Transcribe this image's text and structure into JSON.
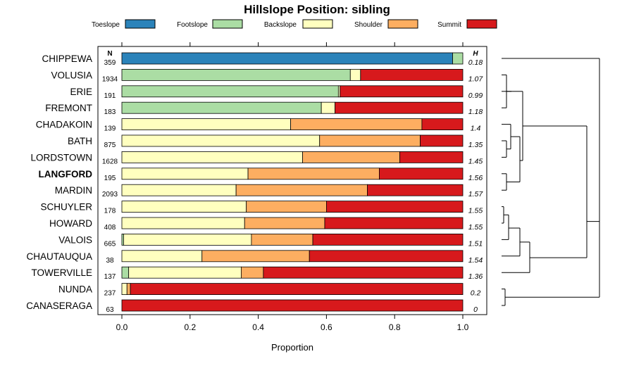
{
  "chart_data": {
    "type": "bar",
    "stacked": true,
    "orientation": "horizontal",
    "title": "Hillslope Position: sibling",
    "xlabel": "Proportion",
    "xlim": [
      0,
      1
    ],
    "x_ticks": [
      "0.0",
      "0.2",
      "0.4",
      "0.6",
      "0.8",
      "1.0"
    ],
    "n_header": "N",
    "h_header": "H",
    "legend_position": "top",
    "series": [
      {
        "name": "Toeslope",
        "color": "#2b83ba"
      },
      {
        "name": "Footslope",
        "color": "#abdda4"
      },
      {
        "name": "Backslope",
        "color": "#ffffbf"
      },
      {
        "name": "Shoulder",
        "color": "#fdae61"
      },
      {
        "name": "Summit",
        "color": "#d7191c"
      }
    ],
    "rows": [
      {
        "label": "CHIPPEWA",
        "n": "359",
        "h": "0.18",
        "bold": false,
        "values": [
          0.97,
          0.03,
          0,
          0,
          0
        ]
      },
      {
        "label": "VOLUSIA",
        "n": "1934",
        "h": "1.07",
        "bold": false,
        "values": [
          0,
          0.67,
          0.03,
          0,
          0.3
        ]
      },
      {
        "label": "ERIE",
        "n": "191",
        "h": "0.99",
        "bold": false,
        "values": [
          0,
          0.635,
          0.005,
          0,
          0.36
        ]
      },
      {
        "label": "FREMONT",
        "n": "183",
        "h": "1.18",
        "bold": false,
        "values": [
          0,
          0.585,
          0.04,
          0,
          0.375
        ]
      },
      {
        "label": "CHADAKOIN",
        "n": "139",
        "h": "1.4",
        "bold": false,
        "values": [
          0,
          0,
          0.495,
          0.385,
          0.12
        ]
      },
      {
        "label": "BATH",
        "n": "875",
        "h": "1.35",
        "bold": false,
        "values": [
          0,
          0,
          0.58,
          0.295,
          0.125
        ]
      },
      {
        "label": "LORDSTOWN",
        "n": "1628",
        "h": "1.45",
        "bold": false,
        "values": [
          0,
          0,
          0.53,
          0.285,
          0.185
        ]
      },
      {
        "label": "LANGFORD",
        "n": "195",
        "h": "1.56",
        "bold": true,
        "values": [
          0,
          0,
          0.37,
          0.385,
          0.245
        ]
      },
      {
        "label": "MARDIN",
        "n": "2093",
        "h": "1.57",
        "bold": false,
        "values": [
          0,
          0,
          0.335,
          0.385,
          0.28
        ]
      },
      {
        "label": "SCHUYLER",
        "n": "178",
        "h": "1.55",
        "bold": false,
        "values": [
          0,
          0,
          0.365,
          0.235,
          0.4
        ]
      },
      {
        "label": "HOWARD",
        "n": "408",
        "h": "1.55",
        "bold": false,
        "values": [
          0,
          0,
          0.36,
          0.235,
          0.405
        ]
      },
      {
        "label": "VALOIS",
        "n": "665",
        "h": "1.51",
        "bold": false,
        "values": [
          0,
          0.005,
          0.375,
          0.18,
          0.44
        ]
      },
      {
        "label": "CHAUTAUQUA",
        "n": "38",
        "h": "1.54",
        "bold": false,
        "values": [
          0,
          0,
          0.235,
          0.315,
          0.45
        ]
      },
      {
        "label": "TOWERVILLE",
        "n": "137",
        "h": "1.36",
        "bold": false,
        "values": [
          0,
          0.02,
          0.33,
          0.065,
          0.585
        ]
      },
      {
        "label": "NUNDA",
        "n": "237",
        "h": "0.2",
        "bold": false,
        "values": [
          0,
          0,
          0.015,
          0.01,
          0.975
        ]
      },
      {
        "label": "CANASERAGA",
        "n": "63",
        "h": "0",
        "bold": false,
        "values": [
          0,
          0,
          0,
          0,
          1
        ]
      }
    ]
  }
}
